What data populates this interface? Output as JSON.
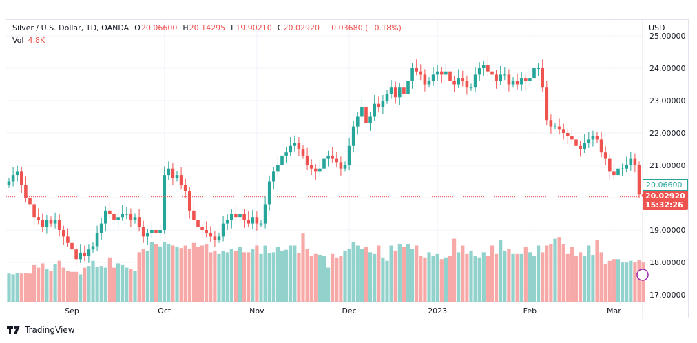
{
  "legend": {
    "symbol": "Silver / U.S. Dollar, 1D, OANDA",
    "o_label": "O",
    "open": "20.06600",
    "h_label": "H",
    "high": "20.14295",
    "l_label": "L",
    "low": "19.90210",
    "c_label": "C",
    "close": "20.02920",
    "change": "−0.03680 (−0.18%)",
    "vol_label": "Vol",
    "vol": "4.8K"
  },
  "axis": {
    "currency": "USD",
    "open_tag": "20.06600",
    "last_tag": "20.02920",
    "countdown": "15:32:26"
  },
  "branding": {
    "name": "TradingView"
  },
  "colors": {
    "up": "#26a69a",
    "down": "#ef5350",
    "up_vol": "#92d2cc",
    "down_vol": "#f7a9a7"
  },
  "chart_data": {
    "type": "candlestick",
    "ylim": [
      17,
      25
    ],
    "yticks": [
      "17.00000",
      "18.00000",
      "19.00000",
      "20.00000",
      "21.00000",
      "22.00000",
      "23.00000",
      "24.00000",
      "25.00000"
    ],
    "xticks": [
      {
        "i": 15,
        "label": "Sep"
      },
      {
        "i": 37,
        "label": "Oct"
      },
      {
        "i": 59,
        "label": "Nov"
      },
      {
        "i": 81,
        "label": "Dec"
      },
      {
        "i": 102,
        "label": "2023"
      },
      {
        "i": 124,
        "label": "Feb"
      },
      {
        "i": 144,
        "label": "Mar"
      }
    ],
    "closes": [
      20.5,
      20.7,
      20.8,
      20.4,
      20.0,
      19.8,
      19.4,
      19.3,
      19.1,
      19.3,
      19.2,
      19.3,
      19.0,
      18.8,
      18.6,
      18.4,
      18.1,
      18.3,
      18.2,
      18.4,
      18.5,
      18.9,
      19.2,
      19.6,
      19.5,
      19.3,
      19.4,
      19.5,
      19.5,
      19.3,
      19.4,
      19.1,
      18.8,
      18.9,
      19.0,
      18.9,
      19.0,
      20.7,
      20.9,
      20.6,
      20.7,
      20.4,
      20.2,
      19.6,
      19.3,
      19.1,
      19.0,
      18.9,
      18.8,
      18.7,
      18.8,
      19.2,
      19.3,
      19.5,
      19.4,
      19.5,
      19.3,
      19.2,
      19.4,
      19.2,
      19.2,
      19.8,
      20.5,
      20.8,
      21.0,
      21.3,
      21.4,
      21.6,
      21.7,
      21.5,
      21.3,
      21.0,
      20.9,
      20.8,
      20.9,
      21.2,
      21.3,
      21.2,
      21.1,
      20.9,
      21.0,
      21.6,
      22.2,
      22.5,
      22.8,
      22.3,
      22.5,
      22.9,
      22.8,
      23.0,
      23.2,
      23.4,
      23.1,
      23.4,
      23.2,
      23.6,
      24.0,
      23.9,
      23.8,
      23.5,
      23.6,
      23.8,
      23.9,
      23.8,
      23.9,
      23.6,
      23.5,
      23.7,
      23.6,
      23.4,
      23.4,
      23.8,
      24.0,
      24.1,
      23.9,
      23.8,
      23.6,
      23.8,
      23.8,
      23.5,
      23.6,
      23.5,
      23.7,
      23.6,
      23.7,
      24.0,
      24.0,
      23.4,
      22.4,
      22.2,
      22.2,
      22.1,
      22.0,
      21.9,
      21.8,
      21.6,
      21.5,
      21.7,
      21.8,
      21.9,
      21.8,
      21.4,
      21.2,
      20.8,
      20.7,
      20.9,
      20.9,
      21.0,
      21.2,
      21.0,
      20.1,
      20.03
    ],
    "volumes_k": [
      3.3,
      3.2,
      3.4,
      3.3,
      3.4,
      3.3,
      4.3,
      4.0,
      4.5,
      3.8,
      3.6,
      4.4,
      4.8,
      4.0,
      3.6,
      3.5,
      3.5,
      3.2,
      4.0,
      4.2,
      4.8,
      4.1,
      4.2,
      4.0,
      5.2,
      4.0,
      4.5,
      4.3,
      4.0,
      3.8,
      3.6,
      5.8,
      6.2,
      6.0,
      7.0,
      6.8,
      6.5,
      7.0,
      6.8,
      6.6,
      6.4,
      6.3,
      6.6,
      6.2,
      6.9,
      6.4,
      6.6,
      6.8,
      5.8,
      6.0,
      5.6,
      6.0,
      5.8,
      6.2,
      6.0,
      6.4,
      5.8,
      5.8,
      6.2,
      6.6,
      5.6,
      6.6,
      5.7,
      5.8,
      6.4,
      6.0,
      6.1,
      6.6,
      6.6,
      5.7,
      8.0,
      6.2,
      5.4,
      5.6,
      5.5,
      5.4,
      4.0,
      5.6,
      5.2,
      5.4,
      6.0,
      6.2,
      7.0,
      6.6,
      6.2,
      6.4,
      5.8,
      5.6,
      6.6,
      5.2,
      4.8,
      6.6,
      6.0,
      6.8,
      6.4,
      6.8,
      6.2,
      6.6,
      5.4,
      5.2,
      5.8,
      5.4,
      5.6,
      5.0,
      5.2,
      5.4,
      7.4,
      5.8,
      6.6,
      5.6,
      6.0,
      5.4,
      5.2,
      5.8,
      5.4,
      6.6,
      5.6,
      7.2,
      6.0,
      6.2,
      5.6,
      5.6,
      5.6,
      6.4,
      5.8,
      5.4,
      6.6,
      5.8,
      6.6,
      6.8,
      7.4,
      7.6,
      6.8,
      5.6,
      6.4,
      5.4,
      5.8,
      5.4,
      6.6,
      5.5,
      7.2,
      5.8,
      4.4,
      4.8,
      5.0,
      5.0,
      4.6,
      4.6,
      4.8,
      4.6,
      4.9,
      4.6,
      4.2,
      4.5,
      5.0,
      4.9
    ]
  }
}
